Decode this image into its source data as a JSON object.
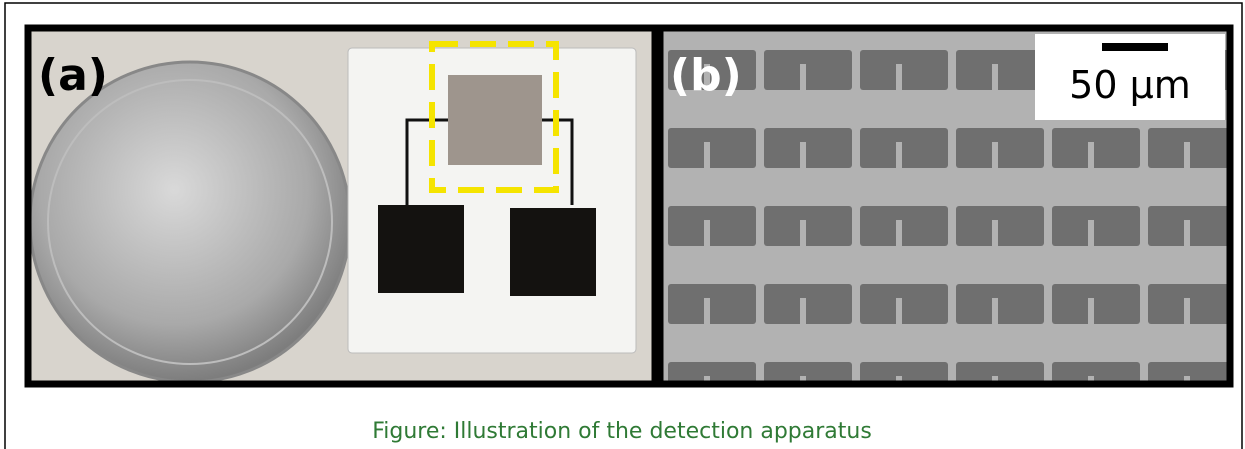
{
  "panels": [
    {
      "label": "(a)"
    },
    {
      "label": "(b)",
      "scale_bar": "50 µm"
    }
  ],
  "caption": "Figure: Illustration of the detection apparatus"
}
